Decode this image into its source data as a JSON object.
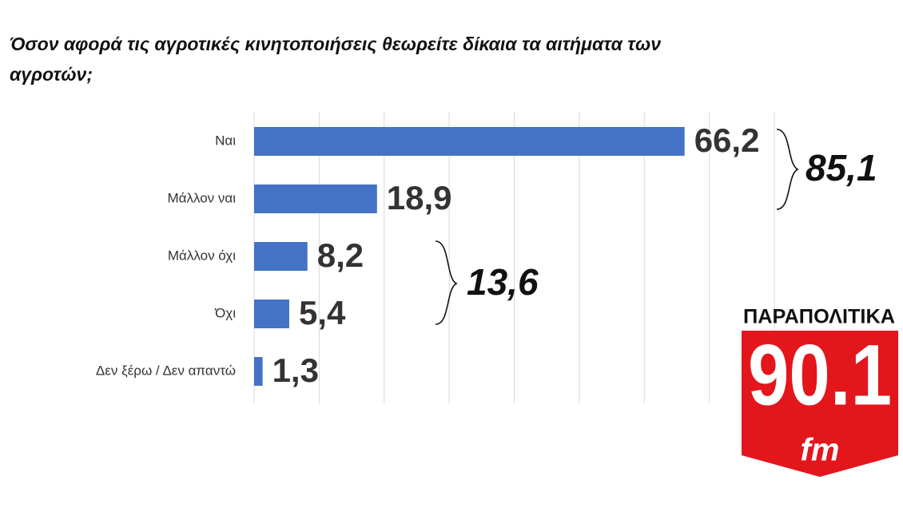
{
  "chart_data": {
    "type": "hbar",
    "title": "Όσον αφορά τις αγροτικές κινητοποιήσεις θεωρείτε δίκαια τα αιτήματα των αγροτών;",
    "categories": [
      "Ναι",
      "Μάλλον ναι",
      "Μάλλον όχι",
      "Όχι",
      "Δεν ξέρω / Δεν απαντώ"
    ],
    "values": [
      66.2,
      18.9,
      8.2,
      5.4,
      1.3
    ],
    "value_labels": [
      "66,2",
      "18,9",
      "8,2",
      "5,4",
      "1,3"
    ],
    "color": "#4472c4",
    "xlim": [
      0,
      80
    ],
    "xticks": [
      0,
      10,
      20,
      30,
      40,
      50,
      60,
      70,
      80
    ],
    "grid": true,
    "annotations": [
      {
        "text": "85,1",
        "from": 0,
        "to": 1
      },
      {
        "text": "13,6",
        "from": 2,
        "to": 3
      }
    ]
  },
  "logo": {
    "brand": "ΠΑΡΑΠΟΛΙΤΙΚΑ",
    "frequency": "90.1",
    "band": "fm"
  }
}
